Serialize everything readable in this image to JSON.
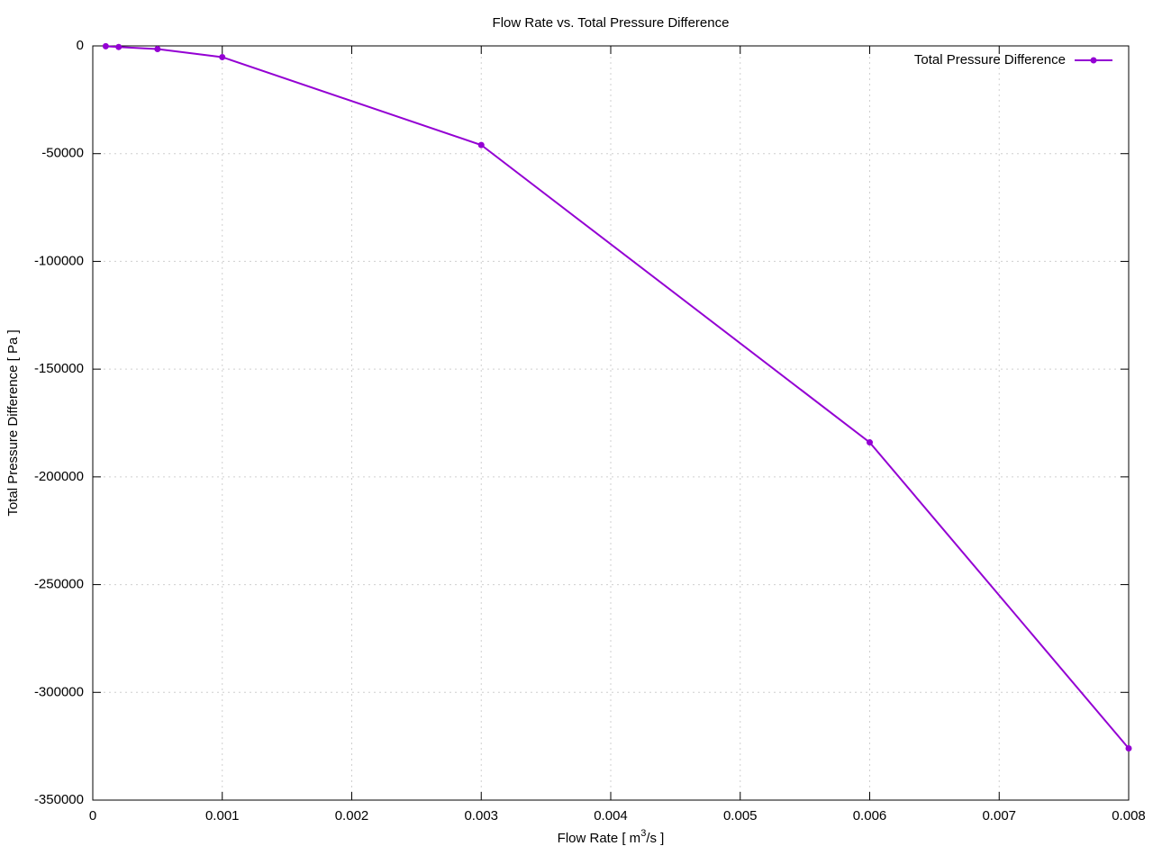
{
  "chart_data": {
    "type": "line",
    "title": "Flow Rate vs. Total Pressure Difference",
    "xlabel": [
      "Flow Rate [ m",
      "3",
      "/s ]"
    ],
    "ylabel": "Total Pressure Difference [ Pa ]",
    "x": [
      0.0001,
      0.0002,
      0.0005,
      0.001,
      0.003,
      0.006,
      0.008
    ],
    "series": [
      {
        "name": "Total Pressure Difference",
        "color": "#9400d3",
        "values": [
          -150,
          -500,
          -1460,
          -5200,
          -46000,
          -184000,
          -326000
        ]
      }
    ],
    "xlim": [
      0,
      0.008
    ],
    "xticks": [
      0,
      0.001,
      0.002,
      0.003,
      0.004,
      0.005,
      0.006,
      0.007,
      0.008
    ],
    "ylim": [
      -350000,
      0
    ],
    "yticks": [
      0,
      -50000,
      -100000,
      -150000,
      -200000,
      -250000,
      -300000,
      -350000
    ],
    "grid": true,
    "legend": "top-right"
  }
}
